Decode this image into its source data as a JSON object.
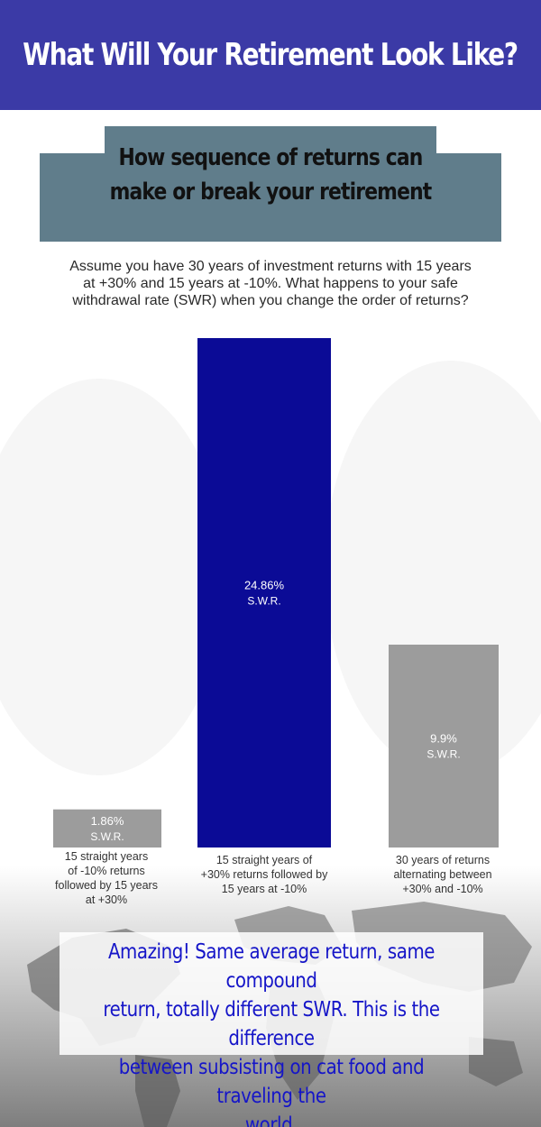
{
  "header": {
    "title": "What Will Your Retirement Look Like?"
  },
  "banner": {
    "lines": [
      "How sequence of returns can",
      "make or break your retirement"
    ]
  },
  "intro": {
    "lines": [
      "Assume you have 30 years of investment returns with 15 years",
      "at +30% and 15 years at -10%. What happens to your safe",
      "withdrawal rate (SWR) when you change the order of returns?"
    ]
  },
  "colors": {
    "header_bg": "#3b3aa6",
    "banner_bg": "#607d8b",
    "bar_highlight": "#0b0b96",
    "bar_default": "#9c9c9c",
    "footer_text": "#1515c8"
  },
  "chart_data": {
    "type": "bar",
    "categories": [
      "15 straight years of -10% returns followed by 15 years at +30%",
      "15 straight years of +30% returns followed by 15 years at -10%",
      "30 years of returns alternating between +30% and -10%"
    ],
    "values": [
      1.86,
      24.86,
      9.9
    ],
    "value_labels": [
      "1.86%",
      "24.86%",
      "9.9%"
    ],
    "unit_label": "S.W.R.",
    "highlight_index": 1,
    "ylim": [
      0,
      24.86
    ],
    "grid": false,
    "legend": "none",
    "category_label_lines": [
      [
        "15 straight years",
        "of -10% returns",
        "followed by 15 years",
        "at +30%"
      ],
      [
        "15 straight years of",
        "+30% returns followed by",
        "15 years at -10%"
      ],
      [
        "30 years of returns",
        "alternating between",
        "+30% and -10%"
      ]
    ]
  },
  "footer": {
    "lines": [
      "Amazing! Same average return, same compound",
      "return, totally different SWR. This is the difference",
      "between subsisting on cat food and traveling the",
      "world."
    ]
  }
}
